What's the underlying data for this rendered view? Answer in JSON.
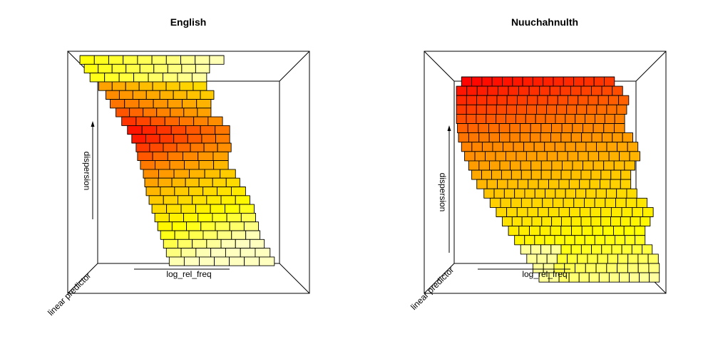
{
  "chart_data": [
    {
      "type": "surface",
      "title": "English",
      "xlabel": "log_rel_freq",
      "ylabel": "dispersion",
      "zlabel": "linear predictor",
      "colormap": "heat",
      "grid": {
        "x": [
          0,
          14
        ],
        "y": [
          0,
          24
        ]
      },
      "surface": {
        "shape": "diagonal-band",
        "rows": [
          {
            "y": 0,
            "x0": 0.5,
            "x1": 10.5
          },
          {
            "y": 1,
            "x0": 0.5,
            "x1": 10.5
          },
          {
            "y": 2,
            "x0": 0.8,
            "x1": 9.5
          },
          {
            "y": 3,
            "x0": 1.2,
            "x1": 9.3
          },
          {
            "y": 4,
            "x0": 1.8,
            "x1": 9.8
          },
          {
            "y": 5,
            "x0": 2.3,
            "x1": 10.0
          },
          {
            "y": 6,
            "x0": 2.6,
            "x1": 9.6
          },
          {
            "y": 7,
            "x0": 3.0,
            "x1": 10.4
          },
          {
            "y": 8,
            "x0": 3.4,
            "x1": 10.9
          },
          {
            "y": 9,
            "x0": 3.8,
            "x1": 10.9
          },
          {
            "y": 10,
            "x0": 4.1,
            "x1": 11.3
          },
          {
            "y": 11,
            "x0": 4.4,
            "x1": 11.0
          },
          {
            "y": 12,
            "x0": 4.5,
            "x1": 10.8
          },
          {
            "y": 13,
            "x0": 4.7,
            "x1": 11.3
          },
          {
            "y": 14,
            "x0": 4.9,
            "x1": 11.6
          },
          {
            "y": 15,
            "x0": 5.0,
            "x1": 12.0
          },
          {
            "y": 16,
            "x0": 5.1,
            "x1": 12.3
          },
          {
            "y": 17,
            "x0": 5.3,
            "x1": 12.6
          },
          {
            "y": 18,
            "x0": 5.5,
            "x1": 12.7
          },
          {
            "y": 19,
            "x0": 5.7,
            "x1": 12.9
          },
          {
            "y": 20,
            "x0": 5.9,
            "x1": 13.0
          },
          {
            "y": 21,
            "x0": 6.1,
            "x1": 13.3
          },
          {
            "y": 22,
            "x0": 6.3,
            "x1": 13.7
          },
          {
            "y": 23,
            "x0": 6.5,
            "x1": 14.0
          },
          {
            "y": 24,
            "x0": 6.7,
            "x1": 14.2
          }
        ],
        "color_range": [
          "#ff0000",
          "#ffffc0"
        ]
      }
    },
    {
      "type": "surface",
      "title": "Nuuchahnulth",
      "xlabel": "log_rel_freq",
      "ylabel": "dispersion",
      "zlabel": "linear predictor",
      "colormap": "heat",
      "grid": {
        "x": [
          0,
          20
        ],
        "y": [
          0,
          22
        ]
      },
      "surface": {
        "shape": "broad-block",
        "rows": [
          {
            "y": 0,
            "x0": 1.0,
            "x1": 16.0
          },
          {
            "y": 1,
            "x0": 0.5,
            "x1": 16.8
          },
          {
            "y": 2,
            "x0": 0.5,
            "x1": 17.4
          },
          {
            "y": 3,
            "x0": 0.5,
            "x1": 17.6
          },
          {
            "y": 4,
            "x0": 0.5,
            "x1": 17.2
          },
          {
            "y": 5,
            "x0": 0.5,
            "x1": 17.0
          },
          {
            "y": 6,
            "x0": 0.6,
            "x1": 17.8
          },
          {
            "y": 7,
            "x0": 0.7,
            "x1": 18.3
          },
          {
            "y": 8,
            "x0": 1.0,
            "x1": 18.6
          },
          {
            "y": 9,
            "x0": 1.3,
            "x1": 18.5
          },
          {
            "y": 10,
            "x0": 1.7,
            "x1": 18.0
          },
          {
            "y": 11,
            "x0": 2.0,
            "x1": 17.6
          },
          {
            "y": 12,
            "x0": 2.5,
            "x1": 18.2
          },
          {
            "y": 13,
            "x0": 3.2,
            "x1": 19.2
          },
          {
            "y": 14,
            "x0": 3.8,
            "x1": 19.8
          },
          {
            "y": 15,
            "x0": 4.4,
            "x1": 19.9
          },
          {
            "y": 16,
            "x0": 5.0,
            "x1": 19.5
          },
          {
            "y": 17,
            "x0": 5.6,
            "x1": 19.0
          },
          {
            "y": 18,
            "x0": 6.2,
            "x1": 19.7
          },
          {
            "y": 19,
            "x0": 6.8,
            "x1": 20.3
          },
          {
            "y": 20,
            "x0": 7.4,
            "x1": 20.4
          },
          {
            "y": 21,
            "x0": 8.0,
            "x1": 20.4
          },
          {
            "y": 22,
            "x0": 8.6,
            "x1": 20.4
          }
        ],
        "color_range": [
          "#ff0000",
          "#ffffc0"
        ]
      }
    }
  ]
}
